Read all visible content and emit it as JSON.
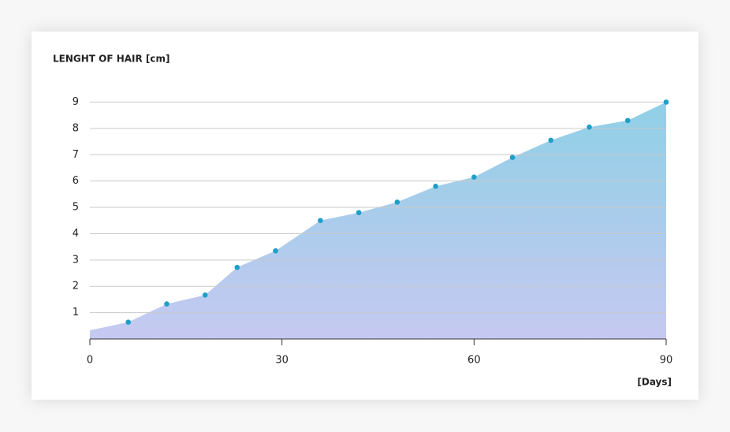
{
  "chart_data": {
    "type": "area",
    "title": "LENGHT OF HAIR [cm]",
    "x_label": "[Days]",
    "x": [
      0,
      6,
      12,
      18,
      23,
      29,
      36,
      42,
      48,
      54,
      60,
      66,
      72,
      78,
      84,
      90
    ],
    "values": [
      0.33,
      0.64,
      1.33,
      1.67,
      2.72,
      3.35,
      4.5,
      4.8,
      5.2,
      5.8,
      6.15,
      6.9,
      7.55,
      8.05,
      8.3,
      9.0
    ],
    "color": "#1e9fc8",
    "fill_gradient": [
      "#8fd0e6",
      "#c6c9f1"
    ],
    "xlim": [
      0,
      90
    ],
    "xticks": [
      0,
      30,
      60,
      90
    ],
    "ylim": [
      0,
      9
    ],
    "yticks": [
      1,
      2,
      3,
      4,
      5,
      6,
      7,
      8,
      9
    ],
    "grid": true
  }
}
